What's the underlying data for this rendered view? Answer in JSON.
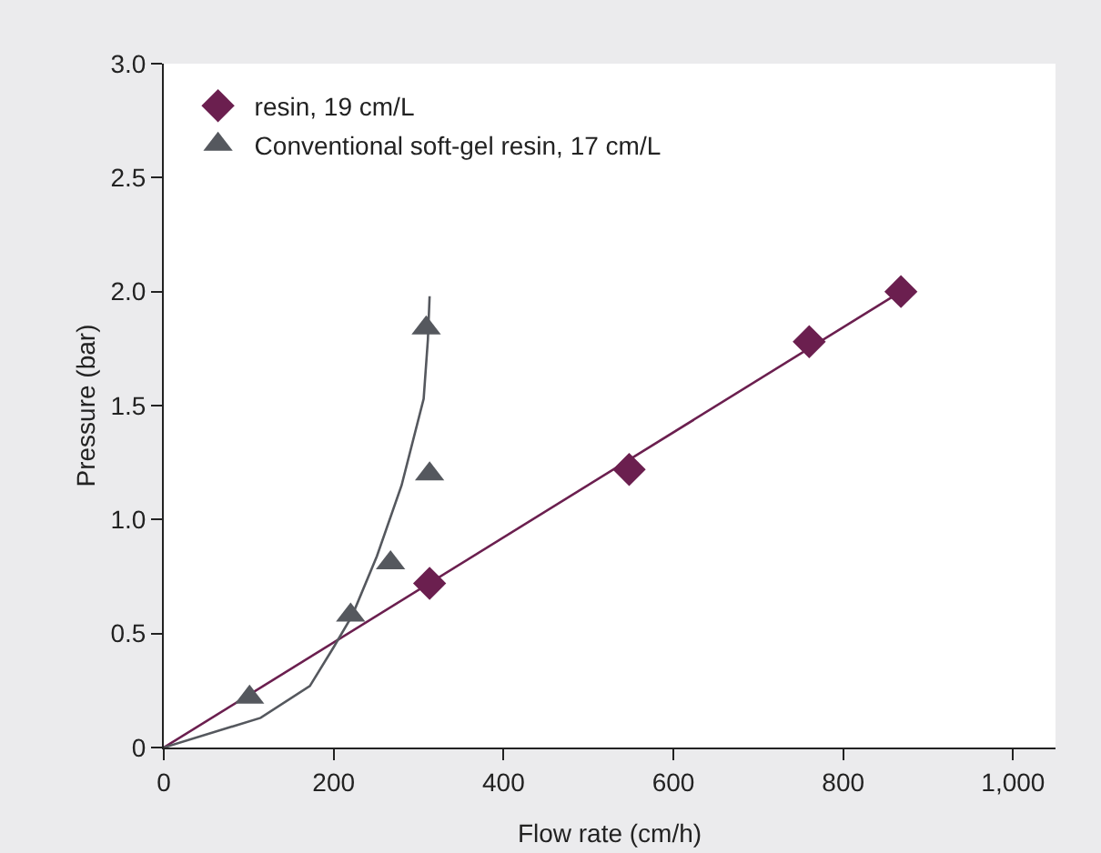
{
  "chart_data": {
    "type": "scatter",
    "xlabel": "Flow rate (cm/h)",
    "ylabel": "Pressure (bar)",
    "xlim": [
      0,
      1050
    ],
    "ylim": [
      0,
      3.0
    ],
    "xticks": [
      0,
      200,
      400,
      600,
      800,
      {
        "value": 1000,
        "label": "1,000"
      }
    ],
    "yticks": [
      0,
      0.5,
      {
        "value": 1,
        "label": "1.0"
      },
      1.5,
      {
        "value": 2,
        "label": "2.0"
      },
      2.5,
      {
        "value": 3,
        "label": "3.0"
      }
    ],
    "grid": false,
    "legend": "top left",
    "series": [
      {
        "name": "resin, 19 cm/L",
        "type": "scatter",
        "marker": "diamond",
        "color": "#6b1f4f",
        "x": [
          313,
          548,
          760,
          868
        ],
        "values": [
          0.72,
          1.22,
          1.78,
          2.0
        ]
      },
      {
        "name": "Conventional soft-gel resin, 17 cm/L",
        "type": "scatter",
        "marker": "triangle",
        "color": "#55585e",
        "x": [
          101,
          220,
          267,
          313,
          309
        ],
        "values": [
          0.22,
          0.58,
          0.81,
          1.2,
          1.84
        ]
      },
      {
        "type": "line",
        "marker": "none",
        "color": "#6b1f4f",
        "x": [
          0,
          868
        ],
        "values": [
          0,
          2.0
        ]
      },
      {
        "type": "line",
        "marker": "none",
        "color": "#55585e",
        "x": [
          0,
          114,
          172,
          200,
          222,
          251,
          280,
          306,
          311,
          313
        ],
        "values": [
          0,
          0.13,
          0.27,
          0.44,
          0.58,
          0.84,
          1.15,
          1.53,
          1.79,
          1.98
        ]
      }
    ]
  }
}
